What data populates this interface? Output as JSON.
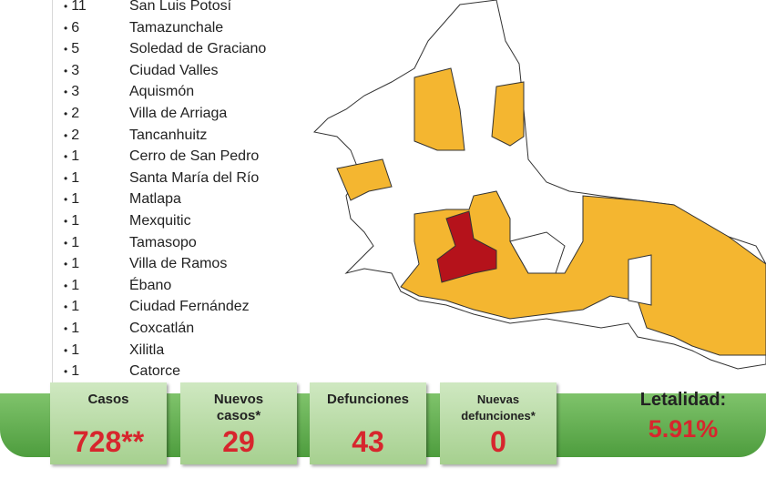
{
  "municipalities": [
    {
      "count": 11,
      "name": "San Luis Potosí"
    },
    {
      "count": 6,
      "name": "Tamazunchale"
    },
    {
      "count": 5,
      "name": "Soledad de Graciano"
    },
    {
      "count": 3,
      "name": "Ciudad Valles"
    },
    {
      "count": 3,
      "name": "Aquismón"
    },
    {
      "count": 2,
      "name": "Villa de Arriaga"
    },
    {
      "count": 2,
      "name": "Tancanhuitz"
    },
    {
      "count": 1,
      "name": "Cerro de San Pedro"
    },
    {
      "count": 1,
      "name": "Santa María del Río"
    },
    {
      "count": 1,
      "name": "Matlapa"
    },
    {
      "count": 1,
      "name": "Mexquitic"
    },
    {
      "count": 1,
      "name": "Tamasopo"
    },
    {
      "count": 1,
      "name": "Villa de Ramos"
    },
    {
      "count": 1,
      "name": "Ébano"
    },
    {
      "count": 1,
      "name": "Ciudad Fernández"
    },
    {
      "count": 1,
      "name": "Coxcatlán"
    },
    {
      "count": 1,
      "name": "Xilitla"
    },
    {
      "count": 1,
      "name": "Catorce"
    }
  ],
  "stats": [
    {
      "label": "Casos",
      "value": "728**"
    },
    {
      "label": "Nuevos casos*",
      "value": 29
    },
    {
      "label": "Defunciones",
      "value": 43
    },
    {
      "label": "Nuevas defunciones*",
      "value": 0
    }
  ],
  "lethality": {
    "label": "Letalidad:",
    "value": "5.91%"
  }
}
